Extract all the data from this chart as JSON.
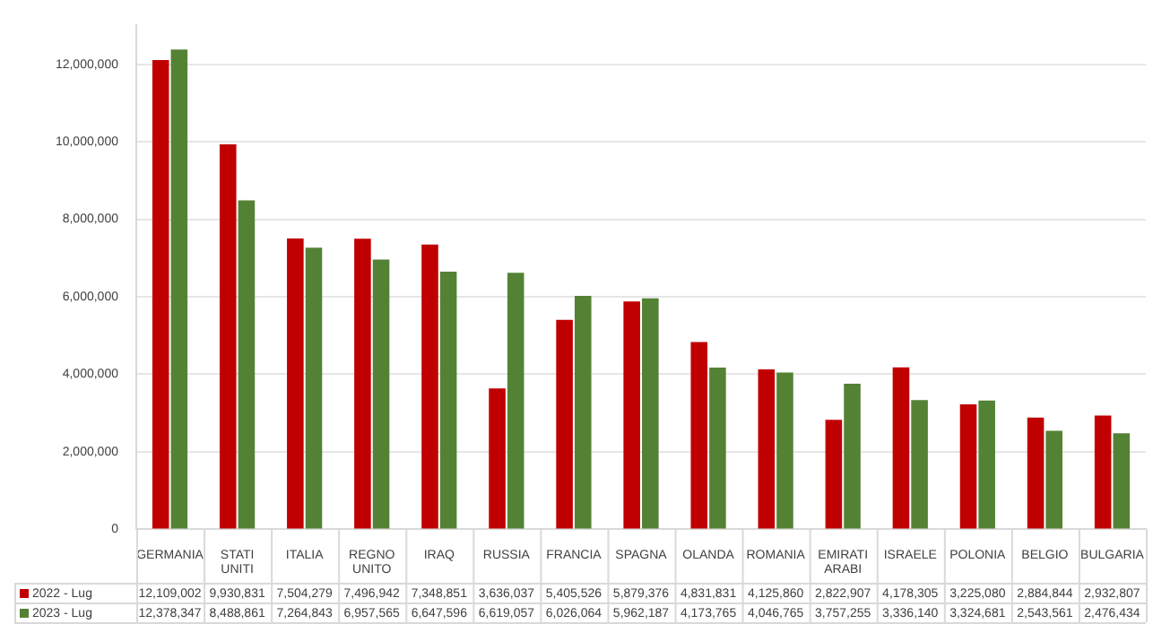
{
  "chart_data": {
    "type": "bar",
    "categories": [
      "GERMANIA",
      "STATI UNITI",
      "ITALIA",
      "REGNO UNITO",
      "IRAQ",
      "RUSSIA",
      "FRANCIA",
      "SPAGNA",
      "OLANDA",
      "ROMANIA",
      "EMIRATI ARABI",
      "ISRAELE",
      "POLONIA",
      "BELGIO",
      "BULGARIA"
    ],
    "series": [
      {
        "name": "2022 - Lug",
        "color": "#c00000",
        "values": [
          12109002,
          9930831,
          7504279,
          7496942,
          7348851,
          3636037,
          5405526,
          5879376,
          4831831,
          4125860,
          2822907,
          4178305,
          3225080,
          2884844,
          2932807
        ],
        "value_labels": [
          "12,109,002",
          "9,930,831",
          "7,504,279",
          "7,496,942",
          "7,348,851",
          "3,636,037",
          "5,405,526",
          "5,879,376",
          "4,831,831",
          "4,125,860",
          "2,822,907",
          "4,178,305",
          "3,225,080",
          "2,884,844",
          "2,932,807"
        ]
      },
      {
        "name": "2023 - Lug",
        "color": "#548235",
        "values": [
          12378347,
          8488861,
          7264843,
          6957565,
          6647596,
          6619057,
          6026064,
          5962187,
          4173765,
          4046765,
          3757255,
          3336140,
          3324681,
          2543561,
          2476434
        ],
        "value_labels": [
          "12,378,347",
          "8,488,861",
          "7,264,843",
          "6,957,565",
          "6,647,596",
          "6,619,057",
          "6,026,064",
          "5,962,187",
          "4,173,765",
          "4,046,765",
          "3,757,255",
          "3,336,140",
          "3,324,681",
          "2,543,561",
          "2,476,434"
        ]
      }
    ],
    "ylim": [
      0,
      13000000
    ],
    "yticks": [
      0,
      {
        "value": 2000000,
        "label": "2,000,000"
      },
      {
        "value": 4000000,
        "label": "4,000,000"
      },
      {
        "value": 6000000,
        "label": "6,000,000"
      },
      {
        "value": 8000000,
        "label": "8,000,000"
      },
      {
        "value": 10000000,
        "label": "10,000,000"
      },
      {
        "value": 12000000,
        "label": "12,000,000"
      }
    ],
    "grid": "y",
    "legend": "bottom"
  }
}
